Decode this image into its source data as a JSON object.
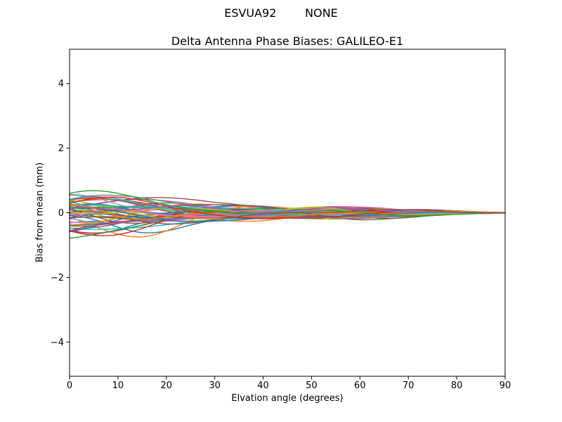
{
  "figure": {
    "background": "#ffffff",
    "text_color": "#000000"
  },
  "chart_data": {
    "type": "line",
    "suptitle": "ESVUA92        NONE",
    "title": "Delta Antenna Phase Biases: GALILEO-E1",
    "xlabel": "Elvation angle (degrees)",
    "ylabel": "Bias from mean (mm)",
    "xlim": [
      0,
      90
    ],
    "ylim": [
      -5.06,
      5.06
    ],
    "x_ticks": [
      0,
      10,
      20,
      30,
      40,
      50,
      60,
      70,
      80,
      90
    ],
    "y_ticks": [
      -4,
      -2,
      0,
      2,
      4
    ],
    "grid": false,
    "legend_position": "none",
    "axis_color": "#000000",
    "series_palette": [
      "#1f77b4",
      "#ff7f0e",
      "#2ca02c",
      "#d62728",
      "#9467bd",
      "#8c564b",
      "#e377c2",
      "#7f7f7f",
      "#bcbd22",
      "#17becf"
    ],
    "ensemble": {
      "description": "Dense ensemble of ~56 unlabeled per-satellite delta phase-bias curves; spread is widest at 0 deg elevation (about +1.05 to -1.22 mm), narrows with a waist near 45 deg (about +-0.25 mm), slight bulge at 50-60 deg, and all curves converge to 0 mm at 90 deg",
      "n_series": 56,
      "seed": 11,
      "x_start": 0,
      "x_end": 90,
      "x_step": 1,
      "envelope_x": [
        0,
        5,
        10,
        15,
        20,
        25,
        30,
        35,
        40,
        45,
        50,
        55,
        60,
        65,
        70,
        75,
        80,
        85,
        90
      ],
      "envelope_upper": [
        1.05,
        0.92,
        0.8,
        0.68,
        0.55,
        0.44,
        0.35,
        0.32,
        0.3,
        0.24,
        0.27,
        0.28,
        0.26,
        0.21,
        0.16,
        0.12,
        0.08,
        0.04,
        0.01
      ],
      "envelope_lower": [
        -1.22,
        -1.08,
        -0.95,
        -0.82,
        -0.66,
        -0.52,
        -0.42,
        -0.38,
        -0.34,
        -0.26,
        -0.28,
        -0.3,
        -0.28,
        -0.23,
        -0.18,
        -0.13,
        -0.08,
        -0.04,
        -0.01
      ]
    }
  }
}
